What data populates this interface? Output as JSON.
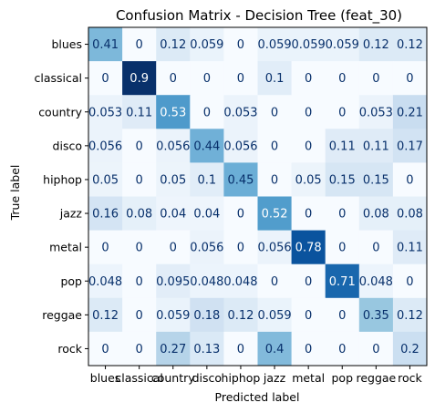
{
  "chart_data": {
    "type": "heatmap",
    "title": "Confusion Matrix - Decision Tree (feat_30)",
    "xlabel": "Predicted label",
    "ylabel": "True label",
    "colormap": "Blues",
    "value_range": [
      0,
      0.9
    ],
    "x_categories": [
      "blues",
      "classical",
      "country",
      "disco",
      "hiphop",
      "jazz",
      "metal",
      "pop",
      "reggae",
      "rock"
    ],
    "y_categories": [
      "blues",
      "classical",
      "country",
      "disco",
      "hiphop",
      "jazz",
      "metal",
      "pop",
      "reggae",
      "rock"
    ],
    "values": [
      [
        0.41,
        0,
        0.12,
        0.059,
        0,
        0.059,
        0.059,
        0.059,
        0.12,
        0.12
      ],
      [
        0,
        0.9,
        0,
        0,
        0,
        0.1,
        0,
        0,
        0,
        0
      ],
      [
        0.053,
        0.11,
        0.53,
        0,
        0.053,
        0,
        0,
        0,
        0.053,
        0.21
      ],
      [
        0.056,
        0,
        0.056,
        0.44,
        0.056,
        0,
        0,
        0.11,
        0.11,
        0.17
      ],
      [
        0.05,
        0,
        0.05,
        0.1,
        0.45,
        0,
        0.05,
        0.15,
        0.15,
        0
      ],
      [
        0.16,
        0.08,
        0.04,
        0.04,
        0,
        0.52,
        0,
        0,
        0.08,
        0.08
      ],
      [
        0,
        0,
        0,
        0.056,
        0,
        0.056,
        0.78,
        0,
        0,
        0.11
      ],
      [
        0.048,
        0,
        0.095,
        0.048,
        0.048,
        0,
        0,
        0.71,
        0.048,
        0
      ],
      [
        0.12,
        0,
        0.059,
        0.18,
        0.12,
        0.059,
        0,
        0,
        0.35,
        0.12
      ],
      [
        0,
        0,
        0.27,
        0.13,
        0,
        0.4,
        0,
        0,
        0,
        0.2
      ]
    ],
    "labels": [
      [
        "0.41",
        "0",
        "0.12",
        "0.059",
        "0",
        "0.059",
        "0.059",
        "0.059",
        "0.12",
        "0.12"
      ],
      [
        "0",
        "0.9",
        "0",
        "0",
        "0",
        "0.1",
        "0",
        "0",
        "0",
        "0"
      ],
      [
        "0.053",
        "0.11",
        "0.53",
        "0",
        "0.053",
        "0",
        "0",
        "0",
        "0.053",
        "0.21"
      ],
      [
        "0.056",
        "0",
        "0.056",
        "0.44",
        "0.056",
        "0",
        "0",
        "0.11",
        "0.11",
        "0.17"
      ],
      [
        "0.05",
        "0",
        "0.05",
        "0.1",
        "0.45",
        "0",
        "0.05",
        "0.15",
        "0.15",
        "0"
      ],
      [
        "0.16",
        "0.08",
        "0.04",
        "0.04",
        "0",
        "0.52",
        "0",
        "0",
        "0.08",
        "0.08"
      ],
      [
        "0",
        "0",
        "0",
        "0.056",
        "0",
        "0.056",
        "0.78",
        "0",
        "0",
        "0.11"
      ],
      [
        "0.048",
        "0",
        "0.095",
        "0.048",
        "0.048",
        "0",
        "0",
        "0.71",
        "0.048",
        "0"
      ],
      [
        "0.12",
        "0",
        "0.059",
        "0.18",
        "0.12",
        "0.059",
        "0",
        "0",
        "0.35",
        "0.12"
      ],
      [
        "0",
        "0",
        "0.27",
        "0.13",
        "0",
        "0.4",
        "0",
        "0",
        "0",
        "0.2"
      ]
    ],
    "grid": false,
    "legend": "none"
  }
}
